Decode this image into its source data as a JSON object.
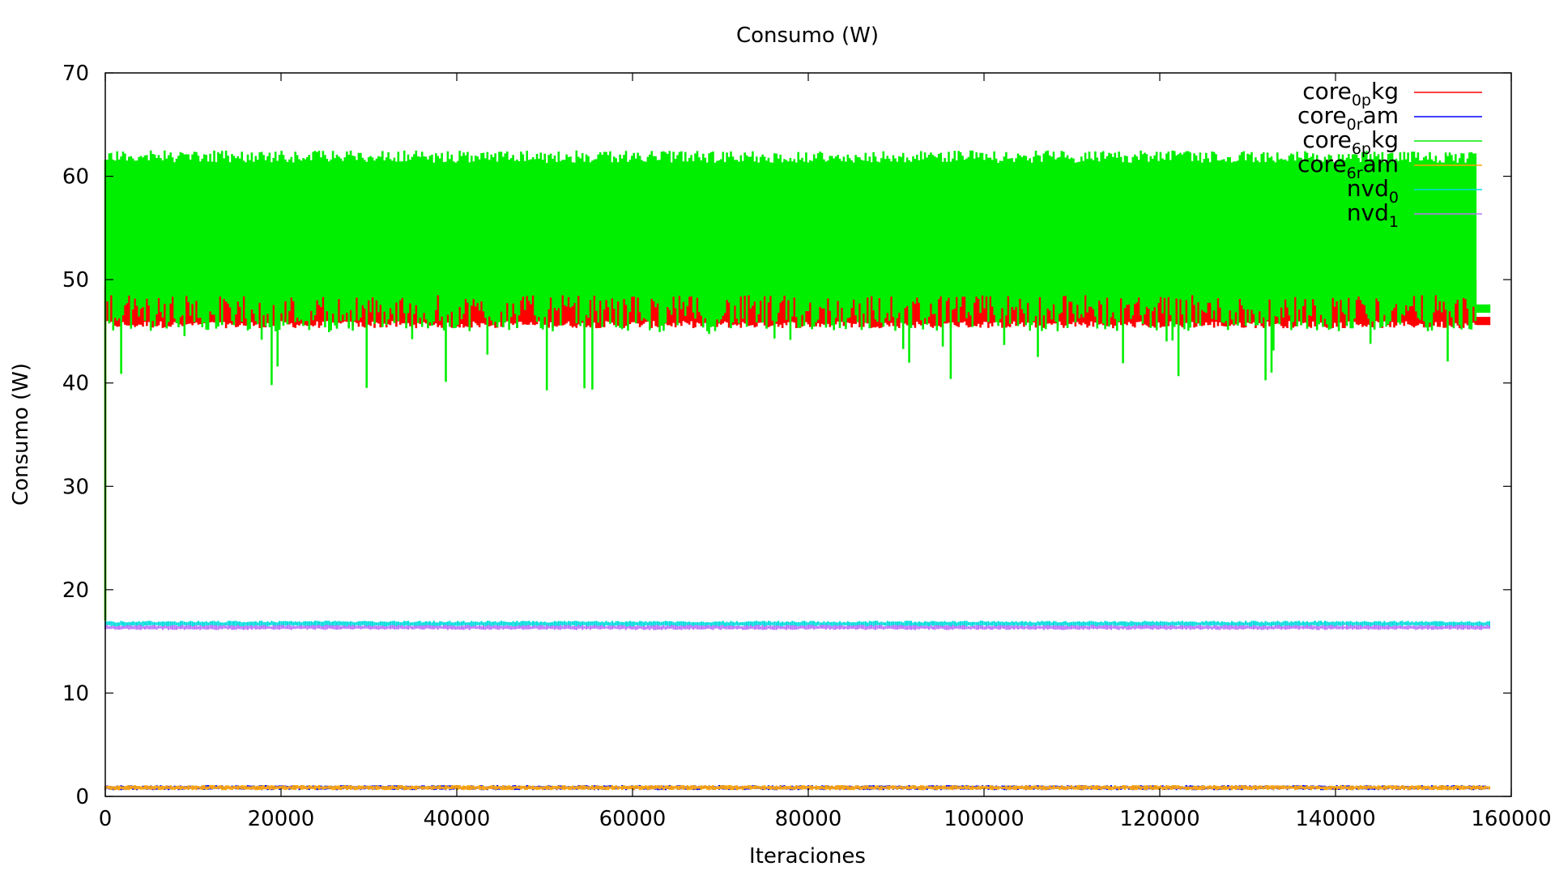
{
  "chart_data": {
    "type": "line",
    "title": "Consumo (W)",
    "xlabel": "Iteraciones",
    "ylabel": "Consumo (W)",
    "xlim": [
      0,
      160000
    ],
    "ylim": [
      0,
      70
    ],
    "x_ticks": [
      0,
      20000,
      40000,
      60000,
      80000,
      100000,
      120000,
      140000,
      160000
    ],
    "x_tick_labels": [
      "0",
      "20000",
      "40000",
      "60000",
      "80000",
      "100000",
      "120000",
      "140000",
      "160000"
    ],
    "y_ticks": [
      0,
      10,
      20,
      30,
      40,
      50,
      60,
      70
    ],
    "y_tick_labels": [
      "0",
      "10",
      "20",
      "30",
      "40",
      "50",
      "60",
      "70"
    ],
    "legend_position": "top-right",
    "x_max_data": 157500,
    "series": [
      {
        "name": "core_0 pkg",
        "legend_base": "core",
        "legend_sub": "0p",
        "legend_suffix": "kg",
        "color": "#ff0000",
        "low": 45.3,
        "high": 51.0,
        "typical": 48.5
      },
      {
        "name": "core_0 ram",
        "legend_base": "core",
        "legend_sub": "0r",
        "legend_suffix": "am",
        "color": "#0000ff",
        "low": 0.6,
        "high": 1.1,
        "typical": 0.8
      },
      {
        "name": "core_6 pkg",
        "legend_base": "core",
        "legend_sub": "6p",
        "legend_suffix": "kg",
        "color": "#00ee00",
        "low": 45.0,
        "high": 62.5,
        "typical": 58.0
      },
      {
        "name": "core_6 ram",
        "legend_base": "core",
        "legend_sub": "6r",
        "legend_suffix": "am",
        "color": "#ffa500",
        "low": 0.6,
        "high": 1.1,
        "typical": 0.8
      },
      {
        "name": "nvd_0",
        "legend_base": "nvd",
        "legend_sub": "0",
        "legend_suffix": "",
        "color": "#00dddd",
        "low": 16.4,
        "high": 17.0,
        "typical": 16.8
      },
      {
        "name": "nvd_1",
        "legend_base": "nvd",
        "legend_sub": "1",
        "legend_suffix": "",
        "color": "#bb77ff",
        "low": 16.1,
        "high": 16.6,
        "typical": 16.3
      }
    ]
  }
}
